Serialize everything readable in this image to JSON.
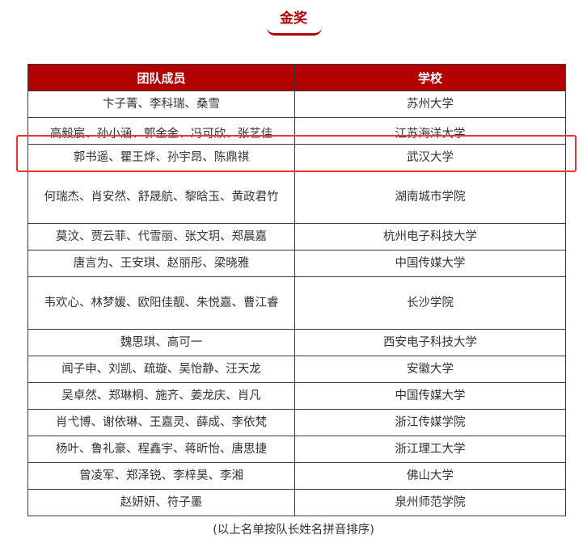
{
  "title": "金奖",
  "table": {
    "headers": [
      "团队成员",
      "学校"
    ],
    "rows": [
      {
        "members": "卞子菁、李科瑞、桑雪",
        "school": "苏州大学"
      },
      {
        "members": "高毅宸、孙小涵、郭金金、冯可欣、张艺佳",
        "school": "江苏海洋大学"
      },
      {
        "members": "郭书遥、瞿王烨、孙宇昂、陈鼎祺",
        "school": "武汉大学",
        "highlighted": true
      },
      {
        "members": "何瑞杰、肖安然、舒晟航、黎晗玉、黄政君竹",
        "school": "湖南城市学院"
      },
      {
        "members": "莫汶、贾云菲、代雪丽、张文玥、郑晨嘉",
        "school": "杭州电子科技大学"
      },
      {
        "members": "唐言为、王安琪、赵丽彤、梁晓雅",
        "school": "中国传媒大学"
      },
      {
        "members": "韦欢心、林梦媛、欧阳佳靓、朱悦嘉、曹江睿",
        "school": "长沙学院"
      },
      {
        "members": "魏思琪、高可一",
        "school": "西安电子科技大学"
      },
      {
        "members": "闻子申、刘凯、疏璇、吴怡静、汪天龙",
        "school": "安徽大学"
      },
      {
        "members": "吴卓然、郑琳桐、施齐、姜龙庆、肖凡",
        "school": "中国传媒大学"
      },
      {
        "members": "肖弋博、谢依琳、王嘉灵、薛成、李依梵",
        "school": "浙江传媒学院"
      },
      {
        "members": "杨叶、鲁礼豪、程鑫宇、蒋昕怡、唐思捷",
        "school": "浙江理工大学"
      },
      {
        "members": "曾凌军、郑泽锐、李梓昊、李湘",
        "school": "佛山大学"
      },
      {
        "members": "赵妍妍、符子墨",
        "school": "泉州师范学院"
      }
    ]
  },
  "footer": "(以上名单按队长姓名拼音排序)",
  "colors": {
    "accent": "#b30000",
    "highlight": "#ee3333"
  }
}
